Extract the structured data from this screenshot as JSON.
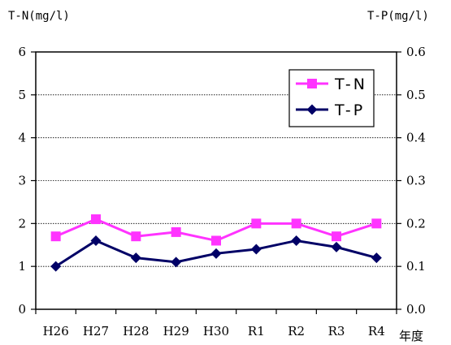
{
  "chart_data": {
    "type": "line",
    "categories": [
      "H26",
      "H27",
      "H28",
      "H29",
      "H30",
      "R1",
      "R2",
      "R3",
      "R4"
    ],
    "series": [
      {
        "name": "T-N",
        "axis": "left",
        "color": "#ff33ff",
        "marker": "square",
        "values": [
          1.7,
          2.1,
          1.7,
          1.8,
          1.6,
          2.0,
          2.0,
          1.7,
          2.0
        ]
      },
      {
        "name": "T-P",
        "axis": "right",
        "color": "#000066",
        "marker": "diamond",
        "values": [
          0.1,
          0.16,
          0.12,
          0.11,
          0.13,
          0.14,
          0.16,
          0.145,
          0.12
        ]
      }
    ],
    "left_axis": {
      "label": "T-N(mg/l)",
      "ylim": [
        0,
        6
      ],
      "ticks": [
        "0",
        "1",
        "2",
        "3",
        "4",
        "5",
        "6"
      ]
    },
    "right_axis": {
      "label": "T-P(mg/l)",
      "ylim": [
        0,
        0.6
      ],
      "ticks": [
        "0.0",
        "0.1",
        "0.2",
        "0.3",
        "0.4",
        "0.5",
        "0.6"
      ]
    },
    "xlabel": "年度",
    "grid": true,
    "legend": "top-right"
  }
}
